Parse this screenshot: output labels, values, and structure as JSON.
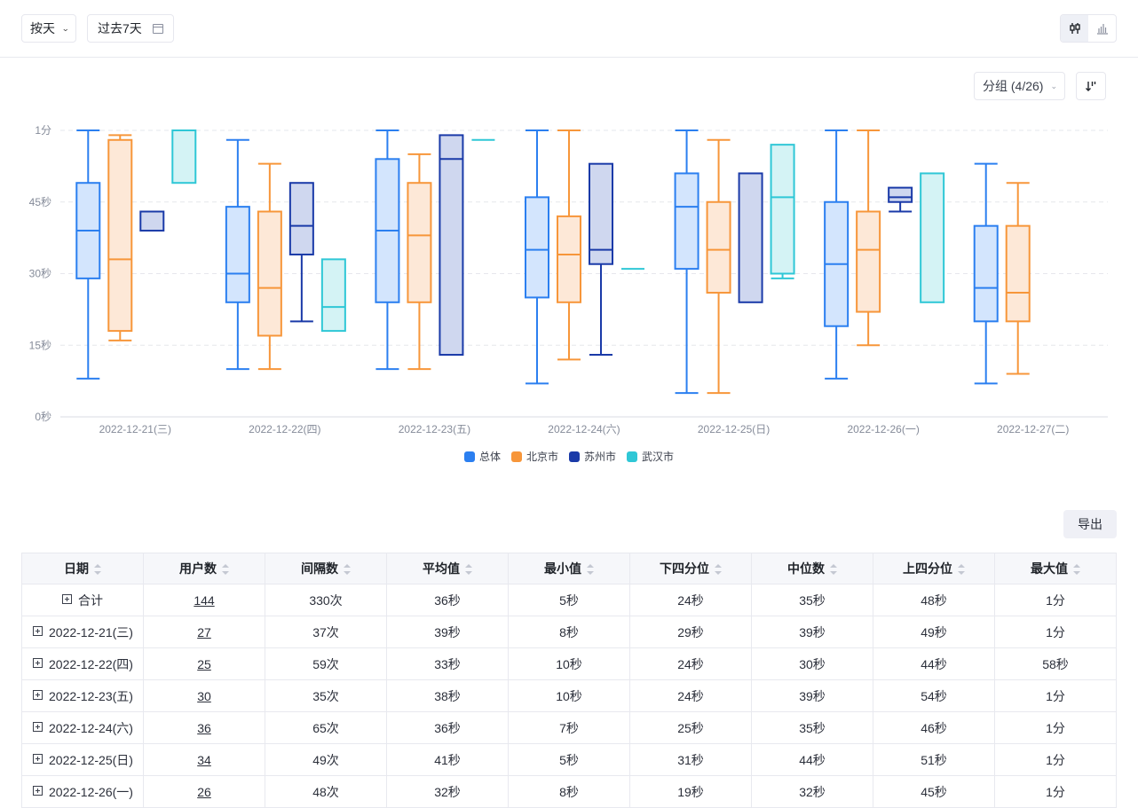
{
  "toolbar": {
    "granularity": "按天",
    "date_range": "过去7天",
    "view_modes": [
      {
        "name": "boxplot-view",
        "active": true
      },
      {
        "name": "bar-view",
        "active": false
      }
    ],
    "group_label": "分组 (4/26)",
    "export_label": "导出"
  },
  "chart_data": {
    "type": "boxplot",
    "title": "",
    "xlabel": "",
    "ylabel": "",
    "ylim": [
      0,
      60
    ],
    "yticks": [
      {
        "value": 0,
        "label": "0秒"
      },
      {
        "value": 15,
        "label": "15秒"
      },
      {
        "value": 30,
        "label": "30秒"
      },
      {
        "value": 45,
        "label": "45秒"
      },
      {
        "value": 60,
        "label": "1分"
      }
    ],
    "grid": true,
    "legend_position": "bottom",
    "categories": [
      "2022-12-21(三)",
      "2022-12-22(四)",
      "2022-12-23(五)",
      "2022-12-24(六)",
      "2022-12-25(日)",
      "2022-12-26(一)",
      "2022-12-27(二)"
    ],
    "series": [
      {
        "name": "总体",
        "color": "#2b7ff0",
        "fill": "#d3e5fd",
        "values": [
          {
            "min": 8,
            "q1": 29,
            "median": 39,
            "q3": 49,
            "max": 60
          },
          {
            "min": 10,
            "q1": 24,
            "median": 30,
            "q3": 44,
            "max": 58
          },
          {
            "min": 10,
            "q1": 24,
            "median": 39,
            "q3": 54,
            "max": 60
          },
          {
            "min": 7,
            "q1": 25,
            "median": 35,
            "q3": 46,
            "max": 60
          },
          {
            "min": 5,
            "q1": 31,
            "median": 44,
            "q3": 51,
            "max": 60
          },
          {
            "min": 8,
            "q1": 19,
            "median": 32,
            "q3": 45,
            "max": 60
          },
          {
            "min": 7,
            "q1": 20,
            "median": 27,
            "q3": 40,
            "max": 53
          }
        ]
      },
      {
        "name": "北京市",
        "color": "#f7963a",
        "fill": "#fde8d7",
        "values": [
          {
            "min": 16,
            "q1": 18,
            "median": 33,
            "q3": 58,
            "max": 59
          },
          {
            "min": 10,
            "q1": 17,
            "median": 27,
            "q3": 43,
            "max": 53
          },
          {
            "min": 10,
            "q1": 24,
            "median": 38,
            "q3": 49,
            "max": 55
          },
          {
            "min": 12,
            "q1": 24,
            "median": 34,
            "q3": 42,
            "max": 60
          },
          {
            "min": 5,
            "q1": 26,
            "median": 35,
            "q3": 45,
            "max": 58
          },
          {
            "min": 15,
            "q1": 22,
            "median": 35,
            "q3": 43,
            "max": 60
          },
          {
            "min": 9,
            "q1": 20,
            "median": 26,
            "q3": 40,
            "max": 49
          }
        ]
      },
      {
        "name": "苏州市",
        "color": "#1a3aa8",
        "fill": "#cfd7ef",
        "values": [
          {
            "min": 39,
            "q1": 39,
            "median": 39,
            "q3": 43,
            "max": 43
          },
          {
            "min": 20,
            "q1": 34,
            "median": 40,
            "q3": 49,
            "max": 49
          },
          {
            "min": 13,
            "q1": 13,
            "median": 54,
            "q3": 59,
            "max": 59
          },
          {
            "min": 13,
            "q1": 32,
            "median": 35,
            "q3": 53,
            "max": 53
          },
          {
            "min": 24,
            "q1": 24,
            "median": 24,
            "q3": 51,
            "max": 51
          },
          {
            "min": 43,
            "q1": 45,
            "median": 46,
            "q3": 48,
            "max": 48
          },
          null
        ]
      },
      {
        "name": "武汉市",
        "color": "#2fc7d6",
        "fill": "#d4f3f5",
        "values": [
          {
            "min": 49,
            "q1": 49,
            "median": 60,
            "q3": 60,
            "max": 60
          },
          {
            "min": 18,
            "q1": 18,
            "median": 23,
            "q3": 33,
            "max": 33
          },
          {
            "min": 58,
            "q1": 58,
            "median": 58,
            "q3": 58,
            "max": 58
          },
          {
            "min": 31,
            "q1": 31,
            "median": 31,
            "q3": 31,
            "max": 31
          },
          {
            "min": 29,
            "q1": 30,
            "median": 46,
            "q3": 57,
            "max": 57
          },
          {
            "min": 24,
            "q1": 24,
            "median": 24,
            "q3": 51,
            "max": 51
          },
          null
        ]
      }
    ]
  },
  "table": {
    "columns": [
      "日期",
      "用户数",
      "间隔数",
      "平均值",
      "最小值",
      "下四分位",
      "中位数",
      "上四分位",
      "最大值"
    ],
    "rows": [
      [
        "合计",
        "144",
        "330次",
        "36秒",
        "5秒",
        "24秒",
        "35秒",
        "48秒",
        "1分"
      ],
      [
        "2022-12-21(三)",
        "27",
        "37次",
        "39秒",
        "8秒",
        "29秒",
        "39秒",
        "49秒",
        "1分"
      ],
      [
        "2022-12-22(四)",
        "25",
        "59次",
        "33秒",
        "10秒",
        "24秒",
        "30秒",
        "44秒",
        "58秒"
      ],
      [
        "2022-12-23(五)",
        "30",
        "35次",
        "38秒",
        "10秒",
        "24秒",
        "39秒",
        "54秒",
        "1分"
      ],
      [
        "2022-12-24(六)",
        "36",
        "65次",
        "36秒",
        "7秒",
        "25秒",
        "35秒",
        "46秒",
        "1分"
      ],
      [
        "2022-12-25(日)",
        "34",
        "49次",
        "41秒",
        "5秒",
        "31秒",
        "44秒",
        "51秒",
        "1分"
      ],
      [
        "2022-12-26(一)",
        "26",
        "48次",
        "32秒",
        "8秒",
        "19秒",
        "32秒",
        "45秒",
        "1分"
      ]
    ]
  }
}
